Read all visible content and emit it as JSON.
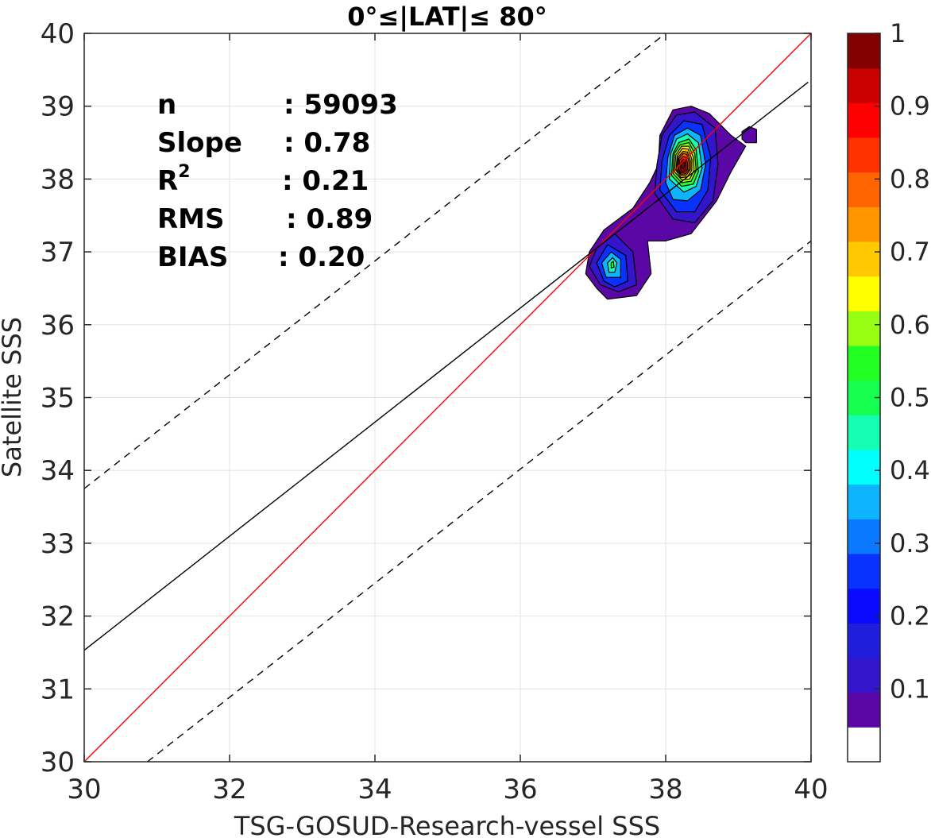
{
  "chart_data": {
    "type": "scatter",
    "subtype": "2d-density-contour",
    "title": "0°≤|LAT|≤ 80°",
    "xlabel": "TSG-GOSUD-Research-vessel SSS",
    "ylabel": "Satellite SSS",
    "xlim": [
      30,
      40
    ],
    "ylim": [
      30,
      40
    ],
    "xticks": [
      "30",
      "32",
      "34",
      "36",
      "38",
      "40"
    ],
    "yticks": [
      "30",
      "31",
      "32",
      "33",
      "34",
      "35",
      "36",
      "37",
      "38",
      "39",
      "40"
    ],
    "grid": true,
    "stats": [
      {
        "name": "n",
        "value": ": 59093"
      },
      {
        "name": "Slope",
        "value": ": 0.78"
      },
      {
        "name": "R",
        "sup": "2",
        "value": ": 0.21"
      },
      {
        "name": "RMS",
        "value": ": 0.89"
      },
      {
        "name": "BIAS",
        "value": ": 0.20"
      }
    ],
    "lines": [
      {
        "name": "",
        "role": "one-to-one",
        "color": "#ff0000",
        "style": "solid",
        "points": [
          [
            30,
            30
          ],
          [
            40,
            40
          ]
        ]
      },
      {
        "name": "",
        "role": "regression-fit",
        "color": "#000000",
        "style": "solid",
        "points": [
          [
            30,
            31.53
          ],
          [
            39.96,
            39.33
          ]
        ]
      },
      {
        "name": "",
        "role": "upper-bound",
        "color": "#000000",
        "style": "dashed",
        "points": [
          [
            30,
            33.75
          ],
          [
            38.0,
            40.0
          ]
        ]
      },
      {
        "name": "",
        "role": "lower-bound",
        "color": "#000000",
        "style": "dashed",
        "points": [
          [
            30.87,
            30.0
          ],
          [
            40.0,
            37.15
          ]
        ]
      }
    ],
    "density_contours": [
      {
        "level": 0.05,
        "color": "#5a07a5",
        "points": [
          [
            37.05,
            36.5
          ],
          [
            36.9,
            36.7
          ],
          [
            36.95,
            37.0
          ],
          [
            37.15,
            37.3
          ],
          [
            37.55,
            37.6
          ],
          [
            37.78,
            37.95
          ],
          [
            37.9,
            38.2
          ],
          [
            37.92,
            38.6
          ],
          [
            38.1,
            38.95
          ],
          [
            38.35,
            39.0
          ],
          [
            38.6,
            38.9
          ],
          [
            38.9,
            38.6
          ],
          [
            39.1,
            38.45
          ],
          [
            38.9,
            38.1
          ],
          [
            38.7,
            37.7
          ],
          [
            38.35,
            37.25
          ],
          [
            38.0,
            37.15
          ],
          [
            37.75,
            37.15
          ],
          [
            37.8,
            36.7
          ],
          [
            37.6,
            36.4
          ],
          [
            37.2,
            36.35
          ]
        ]
      },
      {
        "level": 0.05,
        "color": "#5a07a5",
        "points": [
          [
            39.05,
            38.55
          ],
          [
            39.1,
            38.5
          ],
          [
            39.25,
            38.5
          ],
          [
            39.25,
            38.68
          ],
          [
            39.15,
            38.72
          ],
          [
            39.05,
            38.65
          ]
        ]
      },
      {
        "level": 0.1,
        "color": "#3316cc",
        "points": [
          [
            37.1,
            36.55
          ],
          [
            36.95,
            36.8
          ],
          [
            37.05,
            37.05
          ],
          [
            37.3,
            37.25
          ],
          [
            37.55,
            37.0
          ],
          [
            37.6,
            36.55
          ],
          [
            37.35,
            36.45
          ]
        ]
      },
      {
        "level": 0.1,
        "color": "#3316cc",
        "points": [
          [
            37.85,
            37.8
          ],
          [
            37.88,
            38.2
          ],
          [
            37.95,
            38.6
          ],
          [
            38.15,
            38.88
          ],
          [
            38.4,
            38.92
          ],
          [
            38.68,
            38.7
          ],
          [
            38.72,
            38.2
          ],
          [
            38.65,
            37.7
          ],
          [
            38.4,
            37.4
          ],
          [
            38.1,
            37.45
          ]
        ]
      },
      {
        "level": 0.2,
        "color": "#0a32ff",
        "points": [
          [
            37.15,
            36.6
          ],
          [
            37.05,
            36.85
          ],
          [
            37.2,
            37.1
          ],
          [
            37.45,
            36.95
          ],
          [
            37.48,
            36.6
          ],
          [
            37.3,
            36.52
          ]
        ]
      },
      {
        "level": 0.2,
        "color": "#0a32ff",
        "points": [
          [
            37.92,
            37.85
          ],
          [
            37.95,
            38.25
          ],
          [
            38.05,
            38.6
          ],
          [
            38.25,
            38.8
          ],
          [
            38.5,
            38.75
          ],
          [
            38.62,
            38.3
          ],
          [
            38.58,
            37.85
          ],
          [
            38.4,
            37.55
          ],
          [
            38.15,
            37.55
          ]
        ]
      },
      {
        "level": 0.3,
        "color": "#0fb4ff",
        "points": [
          [
            37.18,
            36.65
          ],
          [
            37.12,
            36.85
          ],
          [
            37.25,
            37.0
          ],
          [
            37.38,
            36.9
          ],
          [
            37.38,
            36.65
          ]
        ]
      },
      {
        "level": 0.3,
        "color": "#0fb4ff",
        "points": [
          [
            38.0,
            37.95
          ],
          [
            38.03,
            38.3
          ],
          [
            38.12,
            38.6
          ],
          [
            38.3,
            38.7
          ],
          [
            38.48,
            38.6
          ],
          [
            38.55,
            38.2
          ],
          [
            38.48,
            37.85
          ],
          [
            38.3,
            37.7
          ],
          [
            38.1,
            37.72
          ]
        ]
      },
      {
        "level": 0.4,
        "color": "#14ffb4",
        "points": [
          [
            37.22,
            36.72
          ],
          [
            37.2,
            36.85
          ],
          [
            37.27,
            36.92
          ],
          [
            37.33,
            36.85
          ],
          [
            37.3,
            36.72
          ]
        ]
      },
      {
        "level": 0.4,
        "color": "#14ffb4",
        "points": [
          [
            38.05,
            38.0
          ],
          [
            38.07,
            38.35
          ],
          [
            38.15,
            38.55
          ],
          [
            38.3,
            38.62
          ],
          [
            38.45,
            38.5
          ],
          [
            38.5,
            38.15
          ],
          [
            38.42,
            37.9
          ],
          [
            38.25,
            37.82
          ]
        ]
      },
      {
        "level": 0.5,
        "color": "#23ff23",
        "points": [
          [
            37.25,
            36.78
          ],
          [
            37.25,
            36.85
          ],
          [
            37.28,
            36.87
          ],
          [
            37.29,
            36.79
          ]
        ]
      },
      {
        "level": 0.5,
        "color": "#23ff23",
        "points": [
          [
            38.08,
            38.05
          ],
          [
            38.1,
            38.35
          ],
          [
            38.18,
            38.5
          ],
          [
            38.32,
            38.55
          ],
          [
            38.42,
            38.4
          ],
          [
            38.45,
            38.1
          ],
          [
            38.38,
            37.93
          ],
          [
            38.22,
            37.9
          ]
        ]
      },
      {
        "level": 0.6,
        "color": "#96ff14",
        "points": [
          [
            38.1,
            38.08
          ],
          [
            38.12,
            38.35
          ],
          [
            38.2,
            38.47
          ],
          [
            38.32,
            38.5
          ],
          [
            38.4,
            38.35
          ],
          [
            38.42,
            38.12
          ],
          [
            38.35,
            37.97
          ],
          [
            38.22,
            37.95
          ]
        ]
      },
      {
        "level": 0.7,
        "color": "#ffff00",
        "points": [
          [
            38.12,
            38.1
          ],
          [
            38.14,
            38.33
          ],
          [
            38.22,
            38.45
          ],
          [
            38.32,
            38.45
          ],
          [
            38.38,
            38.3
          ],
          [
            38.39,
            38.12
          ],
          [
            38.33,
            38.0
          ],
          [
            38.22,
            37.99
          ]
        ]
      },
      {
        "level": 0.75,
        "color": "#ffc800",
        "points": [
          [
            38.14,
            38.12
          ],
          [
            38.16,
            38.32
          ],
          [
            38.23,
            38.42
          ],
          [
            38.31,
            38.41
          ],
          [
            38.36,
            38.27
          ],
          [
            38.36,
            38.12
          ],
          [
            38.3,
            38.03
          ],
          [
            38.21,
            38.02
          ]
        ]
      },
      {
        "level": 0.8,
        "color": "#ff9600",
        "points": [
          [
            38.15,
            38.13
          ],
          [
            38.17,
            38.3
          ],
          [
            38.24,
            38.38
          ],
          [
            38.3,
            38.37
          ],
          [
            38.34,
            38.25
          ],
          [
            38.34,
            38.13
          ],
          [
            38.28,
            38.05
          ],
          [
            38.21,
            38.05
          ]
        ]
      },
      {
        "level": 0.85,
        "color": "#ff6400",
        "points": [
          [
            38.17,
            38.13
          ],
          [
            38.18,
            38.28
          ],
          [
            38.24,
            38.35
          ],
          [
            38.29,
            38.34
          ],
          [
            38.32,
            38.24
          ],
          [
            38.32,
            38.13
          ],
          [
            38.27,
            38.07
          ],
          [
            38.21,
            38.07
          ]
        ]
      },
      {
        "level": 0.9,
        "color": "#ff1e00",
        "points": [
          [
            38.18,
            38.13
          ],
          [
            38.19,
            38.26
          ],
          [
            38.24,
            38.31
          ],
          [
            38.28,
            38.3
          ],
          [
            38.3,
            38.22
          ],
          [
            38.3,
            38.13
          ],
          [
            38.26,
            38.09
          ],
          [
            38.21,
            38.09
          ]
        ]
      },
      {
        "level": 0.95,
        "color": "#c80000",
        "points": [
          [
            38.2,
            38.14
          ],
          [
            38.21,
            38.23
          ],
          [
            38.24,
            38.27
          ],
          [
            38.27,
            38.26
          ],
          [
            38.28,
            38.2
          ],
          [
            38.28,
            38.14
          ],
          [
            38.25,
            38.11
          ],
          [
            38.22,
            38.11
          ]
        ]
      },
      {
        "level": 1.0,
        "color": "#820000",
        "points": [
          [
            38.22,
            38.15
          ],
          [
            38.22,
            38.21
          ],
          [
            38.24,
            38.23
          ],
          [
            38.26,
            38.22
          ],
          [
            38.26,
            38.17
          ],
          [
            38.24,
            38.14
          ]
        ]
      }
    ],
    "colorbar": {
      "ticks": [
        "0.1",
        "0.2",
        "0.3",
        "0.4",
        "0.5",
        "0.6",
        "0.7",
        "0.8",
        "0.9",
        "1"
      ],
      "tick_values": [
        0.1,
        0.2,
        0.3,
        0.4,
        0.5,
        0.6,
        0.7,
        0.8,
        0.9,
        1.0
      ],
      "range": [
        0,
        1
      ],
      "colors": [
        "#ffffff",
        "#5a07a5",
        "#3316cc",
        "#1e1edc",
        "#0a0aff",
        "#0a32ff",
        "#0a78ff",
        "#0fb4ff",
        "#00ffff",
        "#14ffb4",
        "#14ff50",
        "#23ff23",
        "#96ff14",
        "#ffff00",
        "#ffc800",
        "#ff9600",
        "#ff6400",
        "#ff3200",
        "#ff0000",
        "#c80000",
        "#820000"
      ]
    }
  }
}
